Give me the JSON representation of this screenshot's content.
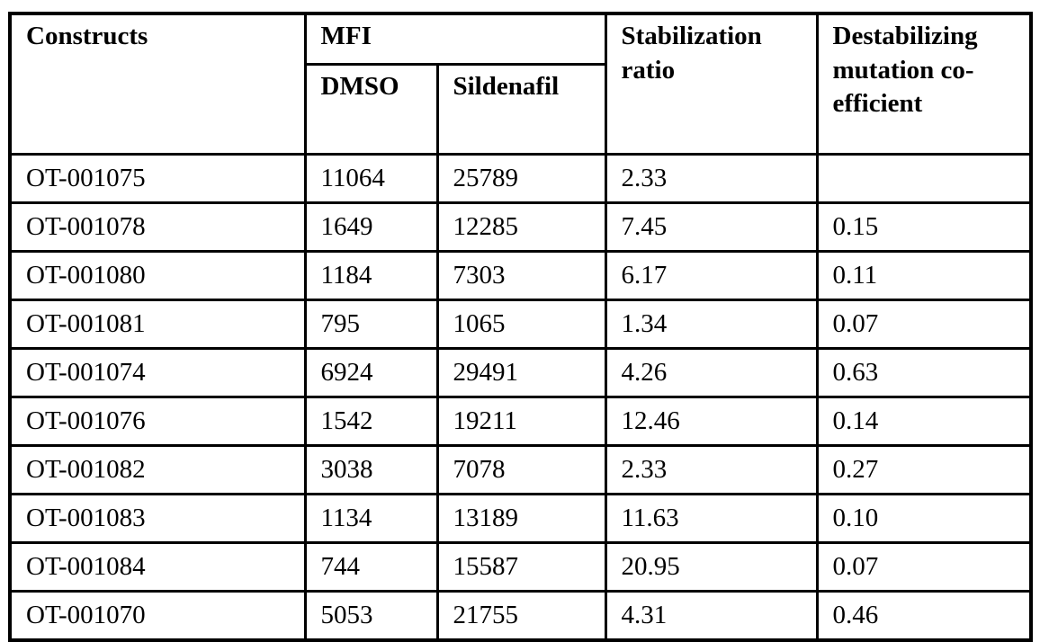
{
  "table": {
    "headers": {
      "constructs": "Constructs",
      "mfi": "MFI",
      "dmso": "DMSO",
      "sildenafil": "Sildenafil",
      "stabilization_ratio": "Stabilization ratio",
      "destabilizing": "Destabilizing mutation co-efficient"
    },
    "rows": [
      {
        "construct": "OT-001075",
        "dmso": "11064",
        "sildenafil": "25789",
        "ratio": "2.33",
        "coefficient": ""
      },
      {
        "construct": "OT-001078",
        "dmso": "1649",
        "sildenafil": "12285",
        "ratio": "7.45",
        "coefficient": "0.15"
      },
      {
        "construct": "OT-001080",
        "dmso": "1184",
        "sildenafil": "7303",
        "ratio": "6.17",
        "coefficient": "0.11"
      },
      {
        "construct": "OT-001081",
        "dmso": "795",
        "sildenafil": "1065",
        "ratio": "1.34",
        "coefficient": "0.07"
      },
      {
        "construct": "OT-001074",
        "dmso": "6924",
        "sildenafil": "29491",
        "ratio": "4.26",
        "coefficient": "0.63"
      },
      {
        "construct": "OT-001076",
        "dmso": "1542",
        "sildenafil": "19211",
        "ratio": "12.46",
        "coefficient": "0.14"
      },
      {
        "construct": "OT-001082",
        "dmso": "3038",
        "sildenafil": "7078",
        "ratio": "2.33",
        "coefficient": "0.27"
      },
      {
        "construct": "OT-001083",
        "dmso": "1134",
        "sildenafil": "13189",
        "ratio": "11.63",
        "coefficient": "0.10"
      },
      {
        "construct": "OT-001084",
        "dmso": "744",
        "sildenafil": "15587",
        "ratio": "20.95",
        "coefficient": "0.07"
      },
      {
        "construct": "OT-001070",
        "dmso": "5053",
        "sildenafil": "21755",
        "ratio": "4.31",
        "coefficient": "0.46"
      }
    ]
  },
  "colors": {
    "text": "#000000",
    "border": "#000000",
    "background": "#ffffff"
  }
}
